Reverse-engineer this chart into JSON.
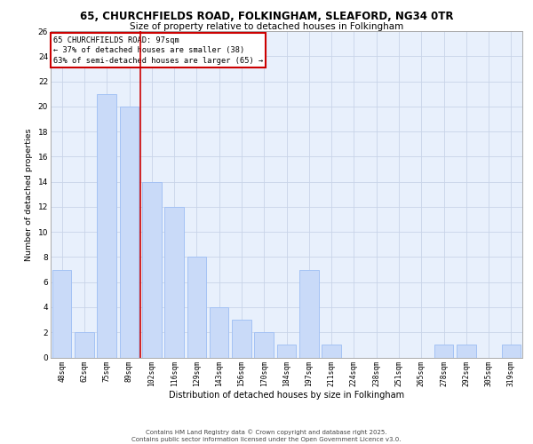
{
  "title_line1": "65, CHURCHFIELDS ROAD, FOLKINGHAM, SLEAFORD, NG34 0TR",
  "title_line2": "Size of property relative to detached houses in Folkingham",
  "xlabel": "Distribution of detached houses by size in Folkingham",
  "ylabel": "Number of detached properties",
  "categories": [
    "48sqm",
    "62sqm",
    "75sqm",
    "89sqm",
    "102sqm",
    "116sqm",
    "129sqm",
    "143sqm",
    "156sqm",
    "170sqm",
    "184sqm",
    "197sqm",
    "211sqm",
    "224sqm",
    "238sqm",
    "251sqm",
    "265sqm",
    "278sqm",
    "292sqm",
    "305sqm",
    "319sqm"
  ],
  "values": [
    7,
    2,
    21,
    20,
    14,
    12,
    8,
    4,
    3,
    2,
    1,
    7,
    1,
    0,
    0,
    0,
    0,
    1,
    1,
    0,
    1
  ],
  "bar_color": "#c9daf8",
  "bar_edgecolor": "#a4c2f4",
  "redline_x": 3.5,
  "annotation_title": "65 CHURCHFIELDS ROAD: 97sqm",
  "annotation_line2": "← 37% of detached houses are smaller (38)",
  "annotation_line3": "63% of semi-detached houses are larger (65) →",
  "annotation_box_color": "#ffffff",
  "annotation_box_edgecolor": "#cc0000",
  "ylim": [
    0,
    26
  ],
  "yticks": [
    0,
    2,
    4,
    6,
    8,
    10,
    12,
    14,
    16,
    18,
    20,
    22,
    24,
    26
  ],
  "grid_color": "#c8d4e8",
  "bg_color": "#e8f0fc",
  "footer_line1": "Contains HM Land Registry data © Crown copyright and database right 2025.",
  "footer_line2": "Contains public sector information licensed under the Open Government Licence v3.0."
}
